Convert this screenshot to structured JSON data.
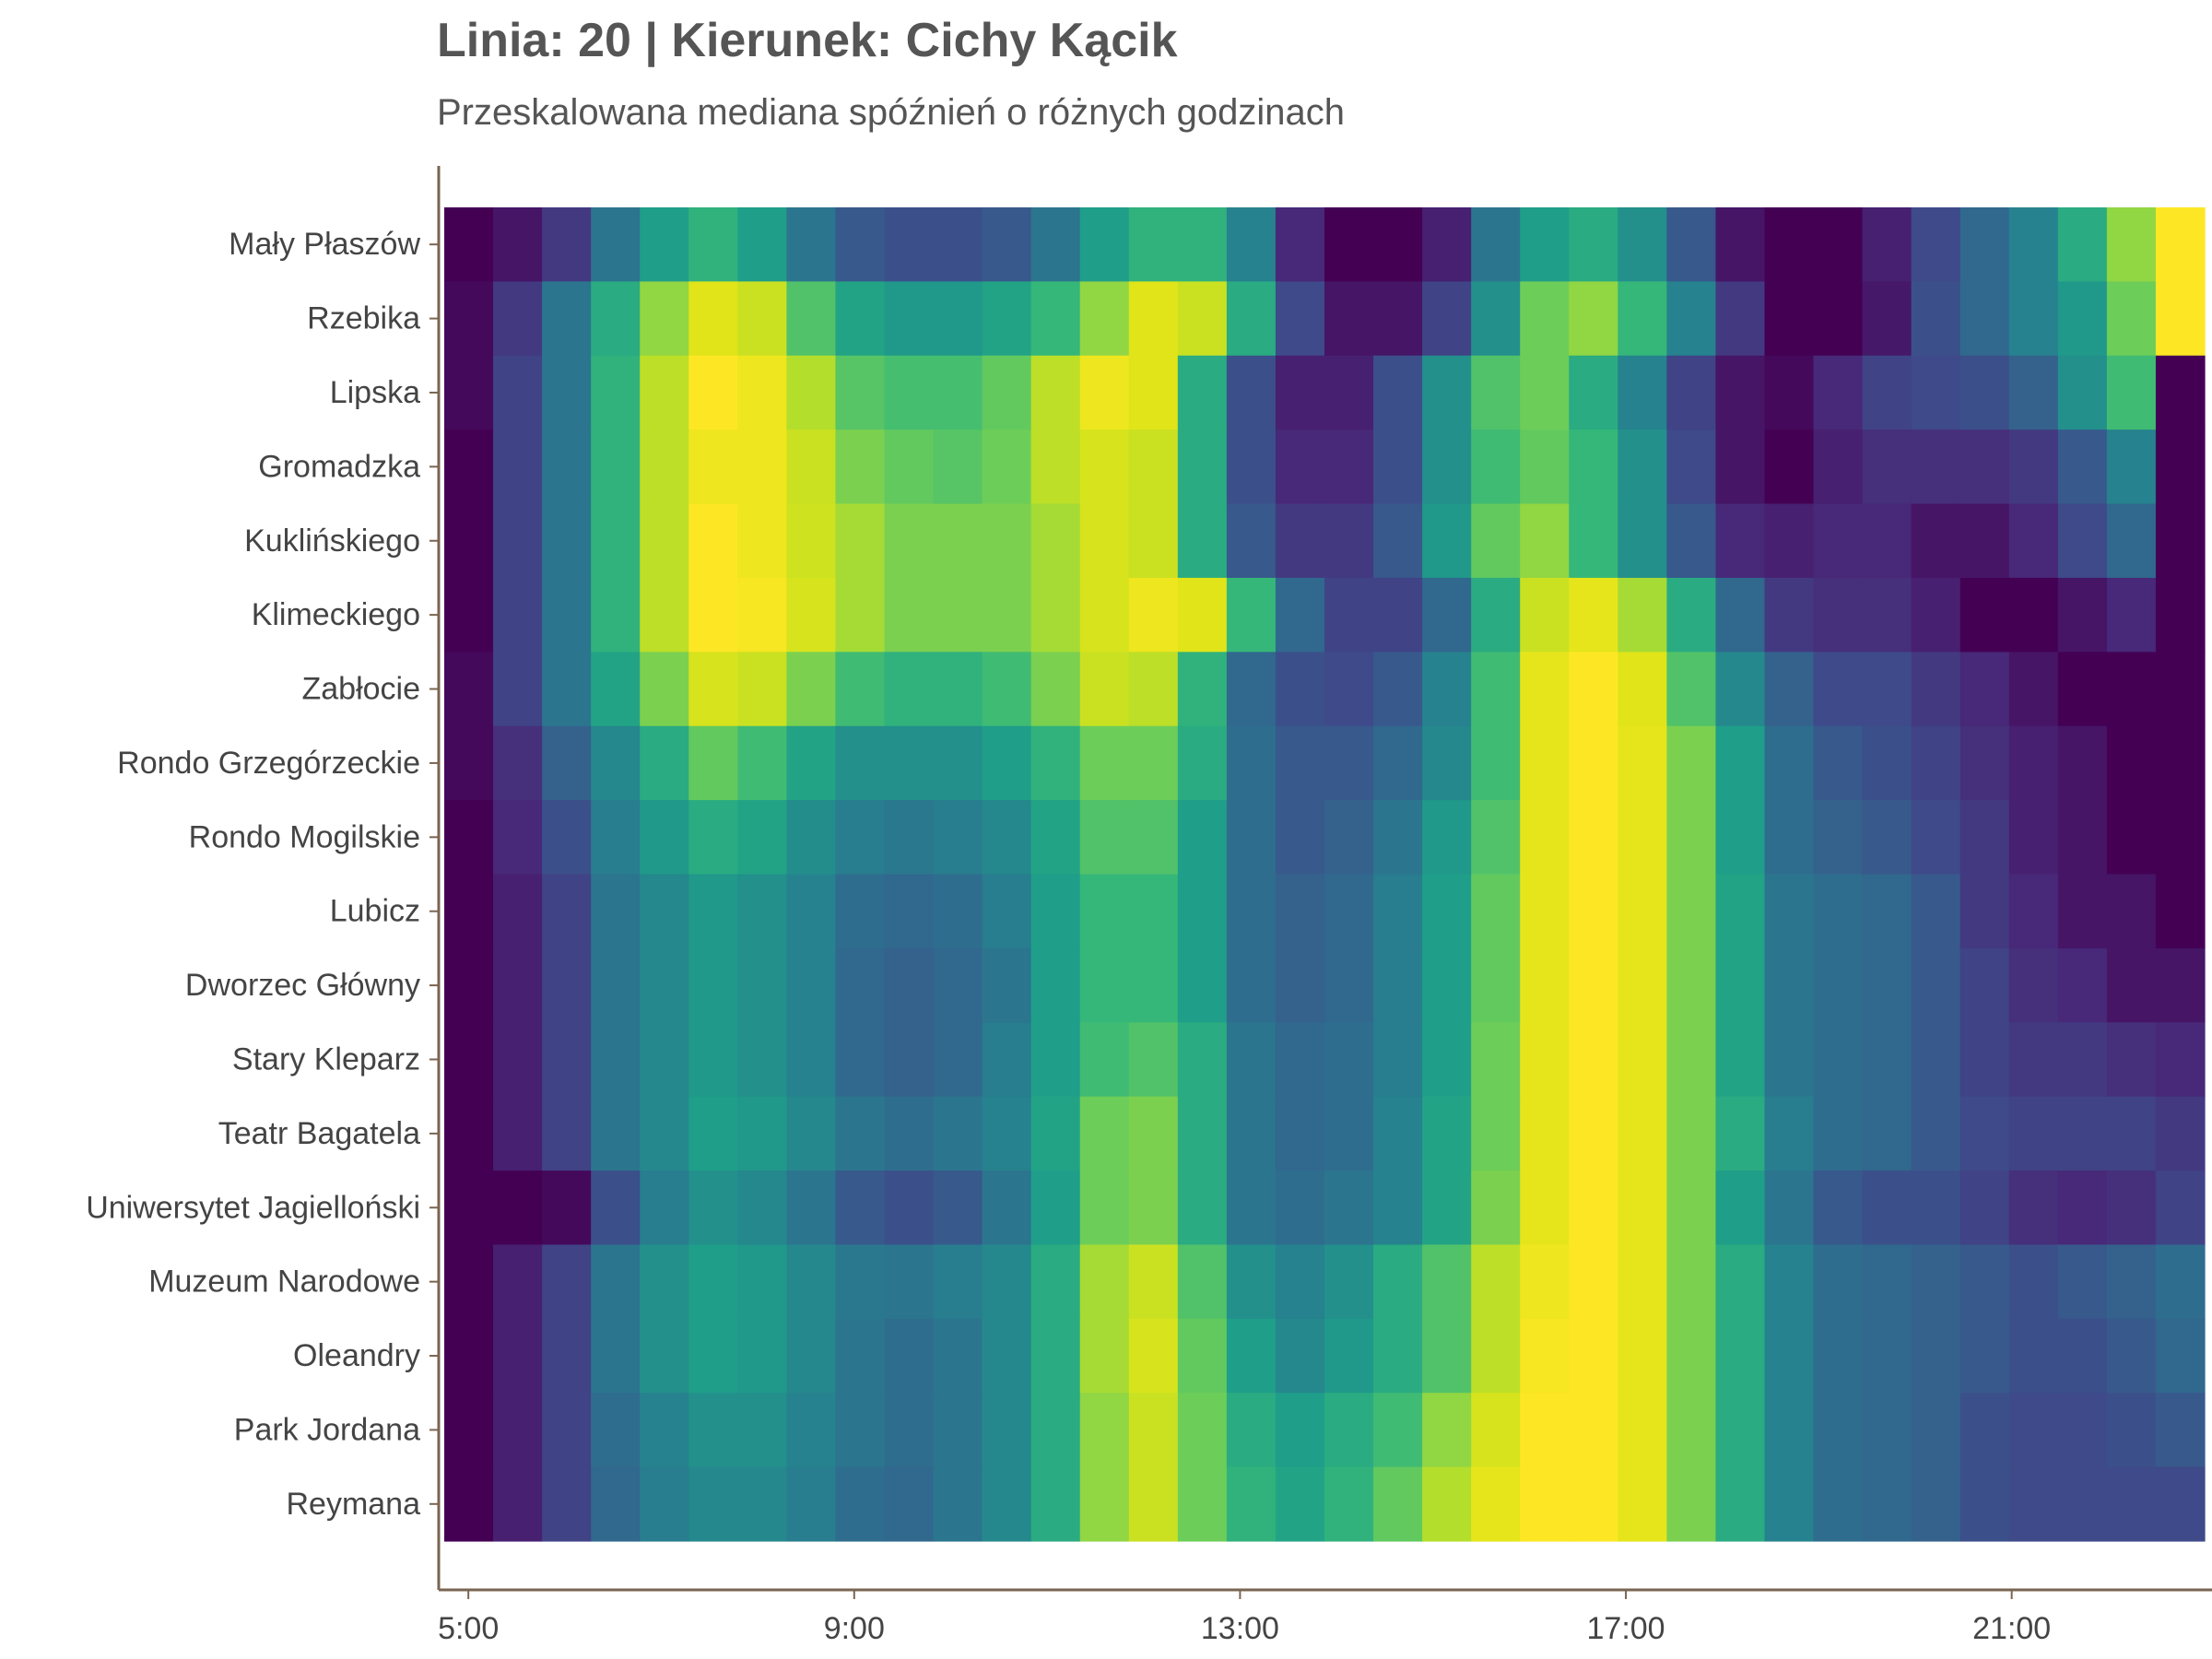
{
  "chart_data": {
    "type": "heatmap",
    "title": "Linia: 20 | Kierunek: Cichy Kącik",
    "subtitle": "Przeskalowana mediana spóźnień o różnych godzinach",
    "xlabel": "",
    "ylabel": "",
    "x_ticks": [
      "5:00",
      "9:00",
      "13:00",
      "17:00",
      "21:00"
    ],
    "x_range": [
      "4:45",
      "23:00"
    ],
    "bin": "0:30",
    "colormap": "viridis",
    "grid": false,
    "legend": "none",
    "rows": [
      "Mały Płaszów",
      "Rzebika",
      "Lipska",
      "Gromadzka",
      "Kuklińskiego",
      "Klimeckiego",
      "Zabłocie",
      "Rondo Grzegórzeckie",
      "Rondo Mogilskie",
      "Lubicz",
      "Dworzec Główny",
      "Stary Kleparz",
      "Teatr Bagatela",
      "Uniwersytet Jagielloński",
      "Muzeum Narodowe",
      "Oleandry",
      "Park Jordana",
      "Reymana"
    ],
    "values": [
      [
        0.0,
        0.05,
        0.15,
        0.35,
        0.5,
        0.58,
        0.5,
        0.35,
        0.25,
        0.22,
        0.22,
        0.25,
        0.35,
        0.5,
        0.58,
        0.58,
        0.4,
        0.1,
        0.0,
        0.0,
        0.08,
        0.35,
        0.5,
        0.55,
        0.45,
        0.25,
        0.05,
        0.0,
        0.0,
        0.08,
        0.2,
        0.3,
        0.4,
        0.55,
        0.75,
        1.0
      ],
      [
        0.02,
        0.15,
        0.35,
        0.55,
        0.75,
        0.9,
        0.85,
        0.65,
        0.52,
        0.48,
        0.48,
        0.52,
        0.6,
        0.75,
        0.9,
        0.85,
        0.55,
        0.2,
        0.05,
        0.05,
        0.18,
        0.45,
        0.7,
        0.75,
        0.6,
        0.4,
        0.15,
        0.0,
        0.0,
        0.06,
        0.22,
        0.3,
        0.4,
        0.48,
        0.7,
        1.0
      ],
      [
        0.02,
        0.18,
        0.35,
        0.58,
        0.82,
        1.0,
        0.95,
        0.8,
        0.66,
        0.63,
        0.63,
        0.68,
        0.82,
        0.95,
        0.9,
        0.55,
        0.22,
        0.08,
        0.08,
        0.22,
        0.45,
        0.65,
        0.7,
        0.55,
        0.4,
        0.18,
        0.05,
        0.02,
        0.1,
        0.18,
        0.2,
        0.22,
        0.28,
        0.45,
        0.62,
        0.0
      ],
      [
        0.0,
        0.18,
        0.35,
        0.58,
        0.82,
        0.95,
        0.95,
        0.85,
        0.72,
        0.68,
        0.66,
        0.7,
        0.82,
        0.88,
        0.85,
        0.55,
        0.22,
        0.1,
        0.1,
        0.22,
        0.45,
        0.62,
        0.68,
        0.6,
        0.45,
        0.2,
        0.05,
        0.0,
        0.08,
        0.12,
        0.12,
        0.12,
        0.15,
        0.25,
        0.4,
        0.0
      ],
      [
        0.0,
        0.18,
        0.35,
        0.58,
        0.82,
        1.0,
        0.95,
        0.86,
        0.78,
        0.72,
        0.72,
        0.72,
        0.78,
        0.88,
        0.85,
        0.55,
        0.25,
        0.15,
        0.15,
        0.25,
        0.48,
        0.68,
        0.75,
        0.6,
        0.45,
        0.25,
        0.1,
        0.08,
        0.1,
        0.1,
        0.05,
        0.05,
        0.1,
        0.2,
        0.3,
        0.0
      ],
      [
        0.0,
        0.18,
        0.35,
        0.58,
        0.82,
        1.0,
        0.98,
        0.88,
        0.78,
        0.72,
        0.72,
        0.72,
        0.78,
        0.88,
        0.95,
        0.9,
        0.6,
        0.3,
        0.18,
        0.18,
        0.3,
        0.55,
        0.85,
        0.92,
        0.78,
        0.55,
        0.3,
        0.15,
        0.12,
        0.12,
        0.08,
        0.0,
        0.0,
        0.05,
        0.1,
        0.0
      ],
      [
        0.02,
        0.18,
        0.35,
        0.52,
        0.72,
        0.88,
        0.85,
        0.72,
        0.62,
        0.58,
        0.58,
        0.62,
        0.72,
        0.85,
        0.82,
        0.58,
        0.3,
        0.22,
        0.2,
        0.25,
        0.4,
        0.62,
        0.92,
        1.0,
        0.9,
        0.65,
        0.42,
        0.28,
        0.2,
        0.2,
        0.15,
        0.1,
        0.05,
        0.0,
        0.0,
        0.0
      ],
      [
        0.02,
        0.12,
        0.28,
        0.42,
        0.55,
        0.68,
        0.62,
        0.52,
        0.45,
        0.45,
        0.45,
        0.5,
        0.58,
        0.7,
        0.7,
        0.55,
        0.32,
        0.25,
        0.25,
        0.3,
        0.42,
        0.62,
        0.92,
        1.0,
        0.92,
        0.72,
        0.5,
        0.32,
        0.25,
        0.22,
        0.18,
        0.12,
        0.08,
        0.05,
        0.0,
        0.0
      ],
      [
        0.0,
        0.1,
        0.22,
        0.38,
        0.48,
        0.55,
        0.52,
        0.44,
        0.38,
        0.36,
        0.38,
        0.42,
        0.52,
        0.65,
        0.65,
        0.5,
        0.32,
        0.25,
        0.28,
        0.35,
        0.48,
        0.65,
        0.92,
        1.0,
        0.92,
        0.72,
        0.5,
        0.32,
        0.28,
        0.25,
        0.2,
        0.15,
        0.08,
        0.05,
        0.0,
        0.0
      ],
      [
        0.0,
        0.08,
        0.18,
        0.35,
        0.42,
        0.48,
        0.45,
        0.4,
        0.32,
        0.3,
        0.32,
        0.38,
        0.5,
        0.6,
        0.6,
        0.5,
        0.32,
        0.28,
        0.3,
        0.38,
        0.5,
        0.68,
        0.92,
        1.0,
        0.92,
        0.72,
        0.52,
        0.35,
        0.32,
        0.3,
        0.25,
        0.15,
        0.1,
        0.05,
        0.05,
        0.0
      ],
      [
        0.0,
        0.08,
        0.18,
        0.35,
        0.42,
        0.48,
        0.45,
        0.4,
        0.3,
        0.28,
        0.3,
        0.35,
        0.5,
        0.6,
        0.6,
        0.5,
        0.32,
        0.28,
        0.3,
        0.38,
        0.5,
        0.68,
        0.92,
        1.0,
        0.92,
        0.72,
        0.52,
        0.35,
        0.32,
        0.3,
        0.25,
        0.18,
        0.12,
        0.1,
        0.05,
        0.05
      ],
      [
        0.0,
        0.08,
        0.18,
        0.35,
        0.42,
        0.48,
        0.45,
        0.4,
        0.3,
        0.28,
        0.3,
        0.38,
        0.5,
        0.62,
        0.65,
        0.55,
        0.35,
        0.3,
        0.32,
        0.38,
        0.5,
        0.7,
        0.92,
        1.0,
        0.92,
        0.72,
        0.52,
        0.35,
        0.32,
        0.3,
        0.25,
        0.18,
        0.15,
        0.15,
        0.12,
        0.1
      ],
      [
        0.0,
        0.08,
        0.18,
        0.35,
        0.42,
        0.5,
        0.48,
        0.42,
        0.35,
        0.32,
        0.35,
        0.4,
        0.52,
        0.7,
        0.72,
        0.55,
        0.35,
        0.3,
        0.32,
        0.4,
        0.52,
        0.7,
        0.92,
        1.0,
        0.92,
        0.72,
        0.55,
        0.38,
        0.32,
        0.3,
        0.25,
        0.2,
        0.18,
        0.18,
        0.18,
        0.15
      ],
      [
        0.0,
        0.0,
        0.02,
        0.22,
        0.38,
        0.45,
        0.42,
        0.35,
        0.25,
        0.22,
        0.25,
        0.35,
        0.5,
        0.7,
        0.72,
        0.55,
        0.35,
        0.32,
        0.35,
        0.4,
        0.52,
        0.72,
        0.92,
        1.0,
        0.92,
        0.72,
        0.5,
        0.35,
        0.25,
        0.22,
        0.22,
        0.18,
        0.12,
        0.1,
        0.12,
        0.18
      ],
      [
        0.0,
        0.08,
        0.18,
        0.35,
        0.45,
        0.5,
        0.48,
        0.42,
        0.36,
        0.35,
        0.38,
        0.42,
        0.55,
        0.78,
        0.85,
        0.65,
        0.45,
        0.4,
        0.45,
        0.55,
        0.65,
        0.82,
        0.95,
        1.0,
        0.92,
        0.72,
        0.55,
        0.4,
        0.32,
        0.3,
        0.28,
        0.25,
        0.22,
        0.25,
        0.28,
        0.32
      ],
      [
        0.0,
        0.08,
        0.18,
        0.35,
        0.45,
        0.5,
        0.48,
        0.42,
        0.35,
        0.32,
        0.35,
        0.42,
        0.55,
        0.78,
        0.88,
        0.68,
        0.5,
        0.42,
        0.48,
        0.55,
        0.65,
        0.82,
        0.98,
        1.0,
        0.92,
        0.72,
        0.55,
        0.4,
        0.32,
        0.3,
        0.28,
        0.25,
        0.22,
        0.22,
        0.25,
        0.3
      ],
      [
        0.0,
        0.08,
        0.18,
        0.32,
        0.4,
        0.45,
        0.45,
        0.4,
        0.35,
        0.32,
        0.35,
        0.42,
        0.55,
        0.75,
        0.85,
        0.7,
        0.55,
        0.5,
        0.55,
        0.62,
        0.75,
        0.88,
        1.0,
        1.0,
        0.92,
        0.72,
        0.55,
        0.4,
        0.32,
        0.3,
        0.28,
        0.22,
        0.2,
        0.2,
        0.22,
        0.25
      ],
      [
        0.0,
        0.08,
        0.18,
        0.3,
        0.38,
        0.42,
        0.42,
        0.38,
        0.32,
        0.3,
        0.35,
        0.42,
        0.55,
        0.75,
        0.85,
        0.7,
        0.58,
        0.52,
        0.58,
        0.68,
        0.8,
        0.92,
        1.0,
        1.0,
        0.92,
        0.72,
        0.55,
        0.4,
        0.32,
        0.3,
        0.28,
        0.22,
        0.2,
        0.2,
        0.2,
        0.2
      ]
    ]
  }
}
